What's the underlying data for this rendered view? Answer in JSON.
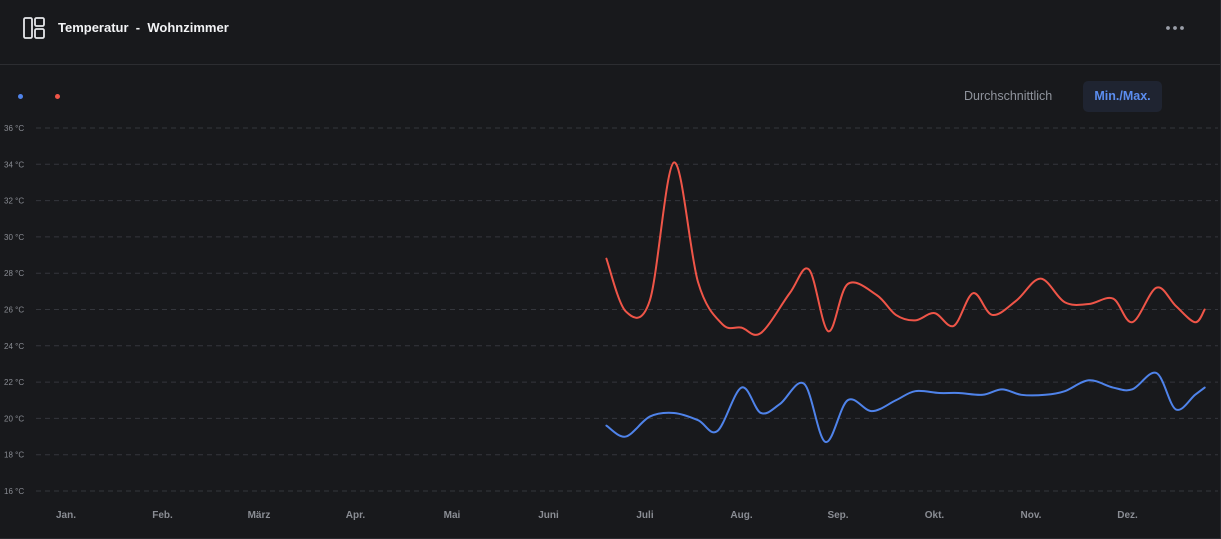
{
  "header": {
    "title_part1": "Temperatur",
    "title_sep": "-",
    "title_part2": "Wohnzimmer"
  },
  "toggles": {
    "average_label": "Durchschnittlich",
    "minmax_label": "Min./Max.",
    "active": "Min./Max."
  },
  "colors": {
    "min_series": "#4f83ea",
    "max_series": "#ef5548",
    "accent": "#5b8def",
    "background": "#18191c"
  },
  "icons": {
    "widget": "dashboard-layout-icon",
    "more": "more-horizontal-icon"
  },
  "chart_data": {
    "type": "line",
    "ylim": [
      16,
      36
    ],
    "y_ticks": [
      "16 °C",
      "18 °C",
      "20 °C",
      "22 °C",
      "24 °C",
      "26 °C",
      "28 °C",
      "30 °C",
      "32 °C",
      "34 °C",
      "36 °C"
    ],
    "y_tick_values": [
      16,
      18,
      20,
      22,
      24,
      26,
      28,
      30,
      32,
      34,
      36
    ],
    "categories": [
      "Jan.",
      "Feb.",
      "März",
      "Apr.",
      "Mai",
      "Juni",
      "Juli",
      "Aug.",
      "Sep.",
      "Okt.",
      "Nov.",
      "Dez."
    ],
    "grid": true,
    "x_range": [
      0.5,
      12.8
    ],
    "series": [
      {
        "color": "#ef5548",
        "points": [
          [
            6.6,
            28.8
          ],
          [
            6.8,
            25.9
          ],
          [
            7.05,
            26.5
          ],
          [
            7.3,
            34.1
          ],
          [
            7.55,
            27.5
          ],
          [
            7.8,
            25.2
          ],
          [
            8.0,
            25.0
          ],
          [
            8.2,
            24.7
          ],
          [
            8.5,
            26.9
          ],
          [
            8.7,
            28.2
          ],
          [
            8.9,
            24.8
          ],
          [
            9.1,
            27.4
          ],
          [
            9.4,
            26.8
          ],
          [
            9.6,
            25.7
          ],
          [
            9.8,
            25.4
          ],
          [
            10.0,
            25.8
          ],
          [
            10.2,
            25.1
          ],
          [
            10.4,
            26.9
          ],
          [
            10.6,
            25.7
          ],
          [
            10.85,
            26.5
          ],
          [
            11.1,
            27.7
          ],
          [
            11.35,
            26.4
          ],
          [
            11.6,
            26.3
          ],
          [
            11.85,
            26.6
          ],
          [
            12.05,
            25.3
          ],
          [
            12.3,
            27.2
          ],
          [
            12.5,
            26.2
          ],
          [
            12.7,
            25.3
          ],
          [
            12.8,
            26.0
          ]
        ]
      },
      {
        "color": "#4f83ea",
        "points": [
          [
            6.6,
            19.6
          ],
          [
            6.8,
            19.0
          ],
          [
            7.05,
            20.1
          ],
          [
            7.3,
            20.3
          ],
          [
            7.55,
            19.9
          ],
          [
            7.75,
            19.3
          ],
          [
            8.0,
            21.7
          ],
          [
            8.2,
            20.3
          ],
          [
            8.4,
            20.8
          ],
          [
            8.65,
            21.9
          ],
          [
            8.87,
            18.7
          ],
          [
            9.1,
            21.0
          ],
          [
            9.35,
            20.4
          ],
          [
            9.6,
            21.0
          ],
          [
            9.8,
            21.5
          ],
          [
            10.05,
            21.4
          ],
          [
            10.25,
            21.4
          ],
          [
            10.5,
            21.3
          ],
          [
            10.7,
            21.6
          ],
          [
            10.9,
            21.3
          ],
          [
            11.15,
            21.3
          ],
          [
            11.35,
            21.5
          ],
          [
            11.6,
            22.1
          ],
          [
            11.85,
            21.7
          ],
          [
            12.05,
            21.6
          ],
          [
            12.3,
            22.5
          ],
          [
            12.5,
            20.5
          ],
          [
            12.7,
            21.3
          ],
          [
            12.8,
            21.7
          ]
        ]
      }
    ]
  }
}
